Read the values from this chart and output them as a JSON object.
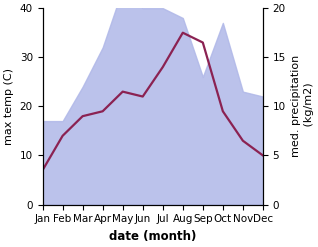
{
  "months": [
    "Jan",
    "Feb",
    "Mar",
    "Apr",
    "May",
    "Jun",
    "Jul",
    "Aug",
    "Sep",
    "Oct",
    "Nov",
    "Dec"
  ],
  "temp": [
    7.0,
    14.0,
    18.0,
    19.0,
    23.0,
    22.0,
    28.0,
    35.0,
    33.0,
    19.0,
    13.0,
    10.0
  ],
  "precip": [
    8.5,
    8.5,
    12.0,
    16.0,
    22.0,
    20.0,
    20.0,
    19.0,
    13.0,
    18.5,
    11.5,
    11.0
  ],
  "temp_color": "#8B2252",
  "precip_color": "#b0b8e8",
  "bg_color": "#ffffff",
  "ylim_left": [
    0,
    40
  ],
  "ylim_right": [
    0,
    20
  ],
  "ylabel_left": "max temp (C)",
  "ylabel_right": "med. precipitation\n (kg/m2)",
  "xlabel": "date (month)",
  "label_fontsize": 8,
  "tick_fontsize": 7.5
}
